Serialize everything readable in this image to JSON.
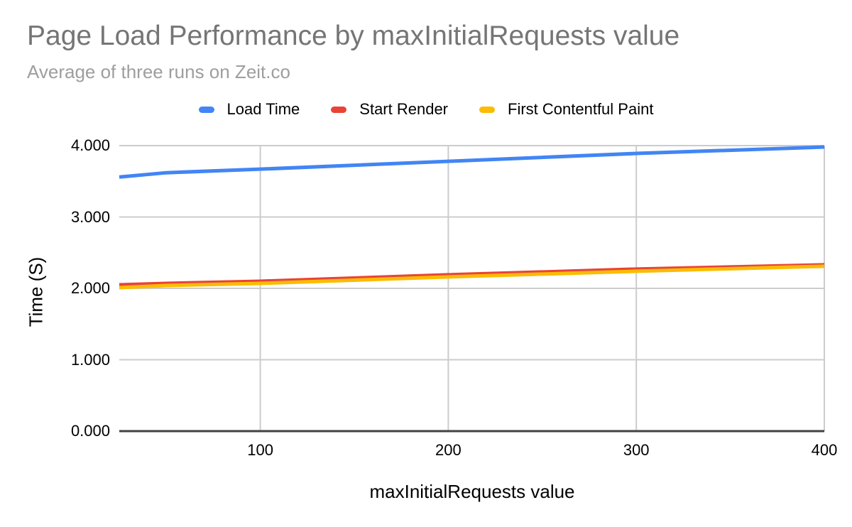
{
  "chart": {
    "title": "Page Load Performance by maxInitialRequests value",
    "subtitle": "Average of three runs on Zeit.co",
    "legend": [
      {
        "label": "Load Time",
        "color": "#4285F4"
      },
      {
        "label": "Start Render",
        "color": "#EA4335"
      },
      {
        "label": "First Contentful Paint",
        "color": "#FBBC04"
      }
    ],
    "y_axis": {
      "title": "Time (S)",
      "tick_labels": [
        "4.000",
        "3.000",
        "2.000",
        "1.000",
        "0.000"
      ]
    },
    "x_axis": {
      "title": "maxInitialRequests value",
      "tick_labels": [
        "100",
        "200",
        "300",
        "400"
      ]
    },
    "colors": {
      "background": "#FFFFFF",
      "title_text": "#757575",
      "subtitle_text": "#9E9E9E",
      "label_text": "#000000",
      "gridline": "#CCCCCC",
      "axis_line": "#424242",
      "blue": "#4285F4",
      "red": "#EA4335",
      "yellow": "#FBBC04"
    }
  },
  "chart_data": {
    "type": "line",
    "title": "Page Load Performance by maxInitialRequests value",
    "subtitle": "Average of three runs on Zeit.co",
    "xlabel": "maxInitialRequests value",
    "ylabel": "Time (S)",
    "x": [
      25,
      50,
      100,
      200,
      300,
      400
    ],
    "series": [
      {
        "name": "Load Time",
        "color": "#4285F4",
        "values": [
          3.56,
          3.62,
          3.67,
          3.78,
          3.89,
          3.98
        ]
      },
      {
        "name": "Start Render",
        "color": "#EA4335",
        "values": [
          2.05,
          2.07,
          2.1,
          2.19,
          2.27,
          2.33
        ]
      },
      {
        "name": "First Contentful Paint",
        "color": "#FBBC04",
        "values": [
          2.01,
          2.04,
          2.07,
          2.16,
          2.24,
          2.31
        ]
      }
    ],
    "xlim": [
      25,
      400
    ],
    "ylim": [
      0,
      4
    ],
    "x_ticks": [
      100,
      200,
      300,
      400
    ],
    "y_ticks": [
      4,
      3,
      2,
      1,
      0
    ],
    "grid": true,
    "legend_position": "top"
  }
}
